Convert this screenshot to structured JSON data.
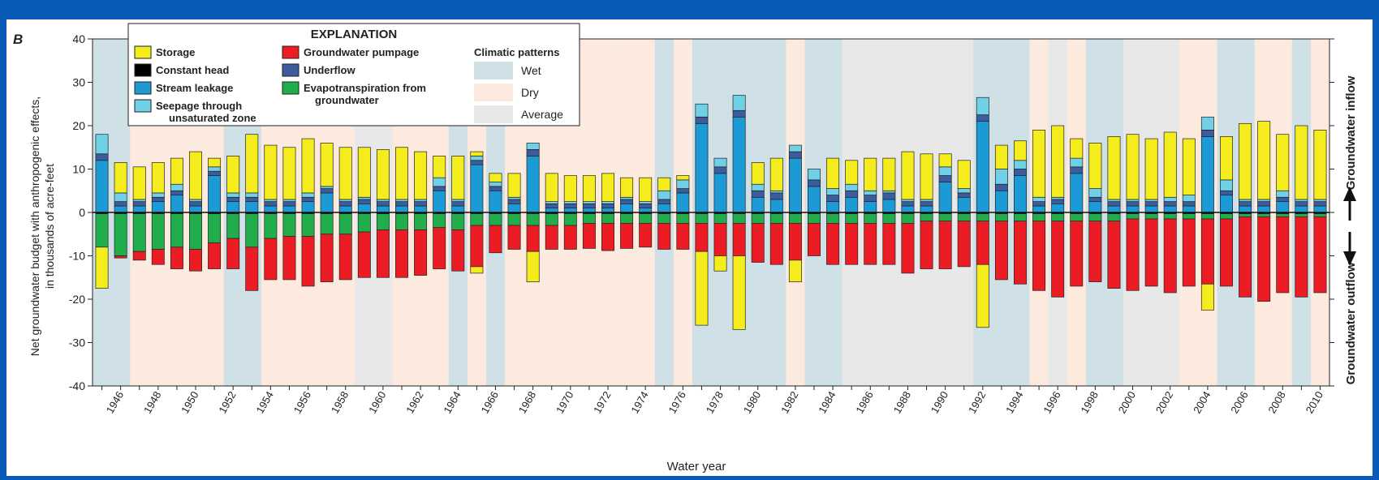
{
  "panel_label": "B",
  "chart_data": {
    "type": "bar",
    "stacked": true,
    "ylabel_line1": "Net groundwater budget with anthropogenic effects,",
    "ylabel_line2": "in thousands of acre-feet",
    "xlabel": "Water year",
    "ylim": [
      -40,
      40
    ],
    "yticks": [
      -40,
      -30,
      -20,
      -10,
      0,
      10,
      20,
      30,
      40
    ],
    "xtick_labels": [
      "1946",
      "1948",
      "1950",
      "1952",
      "1954",
      "1956",
      "1958",
      "1960",
      "1962",
      "1964",
      "1966",
      "1968",
      "1970",
      "1972",
      "1974",
      "1976",
      "1978",
      "1980",
      "1982",
      "1984",
      "1986",
      "1988",
      "1990",
      "1992",
      "1994",
      "1996",
      "1998",
      "2000",
      "2002",
      "2004",
      "2006",
      "2008",
      "2010"
    ],
    "right_label_top": "Groundwater inflow",
    "right_label_bottom": "Groundwater outflow",
    "grid": false,
    "years": [
      1945,
      1946,
      1947,
      1948,
      1949,
      1950,
      1951,
      1952,
      1953,
      1954,
      1955,
      1956,
      1957,
      1958,
      1959,
      1960,
      1961,
      1962,
      1963,
      1964,
      1965,
      1966,
      1967,
      1968,
      1969,
      1970,
      1971,
      1972,
      1973,
      1974,
      1975,
      1976,
      1977,
      1978,
      1979,
      1980,
      1981,
      1982,
      1983,
      1984,
      1985,
      1986,
      1987,
      1988,
      1989,
      1990,
      1991,
      1992,
      1993,
      1994,
      1995,
      1996,
      1997,
      1998,
      1999,
      2000,
      2001,
      2002,
      2003,
      2004,
      2005,
      2006,
      2007,
      2008,
      2009,
      2010
    ],
    "climate_pattern": [
      "Wet",
      "Wet",
      "Dry",
      "Dry",
      "Dry",
      "Dry",
      "Dry",
      "Wet",
      "Wet",
      "Dry",
      "Dry",
      "Dry",
      "Dry",
      "Dry",
      "Average",
      "Average",
      "Dry",
      "Dry",
      "Dry",
      "Wet",
      "Dry",
      "Wet",
      "Dry",
      "Dry",
      "Dry",
      "Dry",
      "Dry",
      "Dry",
      "Dry",
      "Dry",
      "Wet",
      "Dry",
      "Wet",
      "Wet",
      "Wet",
      "Wet",
      "Wet",
      "Dry",
      "Wet",
      "Wet",
      "Average",
      "Average",
      "Average",
      "Average",
      "Average",
      "Average",
      "Average",
      "Wet",
      "Wet",
      "Wet",
      "Dry",
      "Average",
      "Dry",
      "Wet",
      "Wet",
      "Average",
      "Average",
      "Average",
      "Dry",
      "Dry",
      "Wet",
      "Wet",
      "Dry",
      "Dry",
      "Wet",
      "Dry"
    ],
    "inflow_series": [
      {
        "name": "Stream leakage",
        "values": [
          12,
          1.5,
          1.5,
          2.5,
          4,
          1.5,
          8.5,
          2.5,
          2.5,
          1.5,
          1.5,
          2.5,
          4.5,
          1.5,
          2,
          1.5,
          1.5,
          1.5,
          5,
          1.5,
          11,
          5,
          2,
          13,
          1,
          1,
          1,
          1,
          2,
          1,
          2,
          4.5,
          20.5,
          9,
          22,
          3.5,
          3,
          12.5,
          6,
          2.5,
          3.5,
          2.5,
          3,
          1.5,
          1.5,
          7,
          3.5,
          21,
          5,
          8.5,
          1.5,
          2,
          9,
          2.5,
          1.5,
          1.5,
          1.5,
          1.5,
          1.5,
          17.5,
          4,
          1.5,
          1.5,
          2.5,
          1.5,
          1.5
        ]
      },
      {
        "name": "Underflow",
        "values": [
          1.5,
          1,
          1,
          1,
          1,
          1,
          1,
          1,
          1,
          1,
          1,
          1,
          1,
          1,
          1,
          1,
          1,
          1,
          1,
          1,
          1,
          1,
          1,
          1.5,
          1,
          1,
          1,
          1,
          1,
          1,
          1,
          1,
          1.5,
          1.5,
          1.5,
          1.5,
          1.5,
          1.5,
          1.5,
          1.5,
          1.5,
          1.5,
          1.5,
          1,
          1,
          1.5,
          1,
          1.5,
          1.5,
          1.5,
          1,
          1,
          1.5,
          1,
          1,
          1,
          1,
          1,
          1,
          1.5,
          1,
          1,
          1,
          1,
          1,
          1
        ]
      },
      {
        "name": "Seepage through unsaturated zone",
        "values": [
          4.5,
          2,
          0.5,
          1,
          1.5,
          0.5,
          1,
          1,
          1,
          0.5,
          0.5,
          1,
          0.5,
          0.5,
          0.5,
          0.5,
          0.5,
          0.5,
          2,
          0.5,
          1,
          1,
          0.5,
          1.5,
          0.5,
          0.5,
          0.5,
          0.5,
          0.5,
          0.5,
          2,
          2,
          3,
          2,
          3.5,
          1.5,
          0.5,
          1.5,
          2.5,
          1.5,
          1.5,
          1,
          0.5,
          0.5,
          0.5,
          2,
          1,
          4,
          3.5,
          2,
          1,
          0.5,
          2,
          2,
          0.5,
          0.5,
          0.5,
          1,
          1.5,
          3,
          2.5,
          0.5,
          0.5,
          1.5,
          0.5,
          0.5
        ]
      },
      {
        "name": "Storage",
        "values": [
          0,
          7,
          7.5,
          7,
          6,
          11,
          2,
          8.5,
          13.5,
          12.5,
          12,
          12.5,
          10,
          12,
          11.5,
          11.5,
          12,
          11,
          5,
          10,
          1,
          2,
          5.5,
          0,
          6.5,
          6,
          6,
          6.5,
          4.5,
          5.5,
          3,
          1,
          0,
          0,
          0,
          5,
          7.5,
          0,
          0,
          7,
          5.5,
          7.5,
          7.5,
          11,
          10.5,
          3,
          6.5,
          0,
          5.5,
          4.5,
          15.5,
          16.5,
          4.5,
          10.5,
          14.5,
          15,
          14,
          15,
          13,
          0,
          10,
          17.5,
          18,
          13,
          17,
          16
        ]
      }
    ],
    "outflow_series": [
      {
        "name": "Constant head",
        "values": [
          -0.3,
          -0.3,
          -0.3,
          -0.3,
          -0.3,
          -0.3,
          -0.3,
          -0.3,
          -0.3,
          -0.3,
          -0.3,
          -0.3,
          -0.3,
          -0.3,
          -0.3,
          -0.3,
          -0.3,
          -0.3,
          -0.3,
          -0.3,
          -0.3,
          -0.3,
          -0.3,
          -0.3,
          -0.3,
          -0.3,
          -0.3,
          -0.3,
          -0.3,
          -0.3,
          -0.3,
          -0.3,
          -0.3,
          -0.3,
          -0.3,
          -0.3,
          -0.3,
          -0.3,
          -0.3,
          -0.3,
          -0.3,
          -0.3,
          -0.3,
          -0.3,
          -0.3,
          -0.3,
          -0.3,
          -0.3,
          -0.3,
          -0.3,
          -0.3,
          -0.3,
          -0.3,
          -0.3,
          -0.3,
          -0.3,
          -0.3,
          -0.3,
          -0.3,
          -0.3,
          -0.3,
          -0.3,
          -0.3,
          -0.3,
          -0.3,
          -0.3
        ]
      },
      {
        "name": "Evapotranspiration from groundwater",
        "values": [
          -7.7,
          -9.7,
          -8.7,
          -8.2,
          -7.7,
          -8.2,
          -6.7,
          -5.7,
          -7.7,
          -5.7,
          -5.2,
          -5.2,
          -4.7,
          -4.7,
          -4.2,
          -3.7,
          -3.7,
          -3.7,
          -3.2,
          -3.7,
          -2.7,
          -2.7,
          -2.7,
          -2.7,
          -2.7,
          -2.7,
          -2.2,
          -2.2,
          -2.2,
          -2.2,
          -2.2,
          -2.2,
          -2.2,
          -2.2,
          -2.2,
          -2.2,
          -2.2,
          -2.2,
          -2.2,
          -2.2,
          -2.2,
          -2.2,
          -2.2,
          -2.2,
          -1.7,
          -1.7,
          -1.7,
          -1.7,
          -1.7,
          -1.7,
          -1.7,
          -1.7,
          -1.7,
          -1.7,
          -1.7,
          -1.2,
          -1.2,
          -1.2,
          -1.2,
          -1.2,
          -1.2,
          -0.7,
          -0.7,
          -0.7,
          -0.7,
          -0.7
        ]
      },
      {
        "name": "Groundwater pumpage",
        "values": [
          0,
          -0.5,
          -2,
          -3.5,
          -5,
          -5,
          -6,
          -7,
          -10,
          -9.5,
          -10,
          -11.5,
          -11,
          -10.5,
          -10.5,
          -11,
          -11,
          -10.5,
          -9.5,
          -9.5,
          -9.5,
          -6.3,
          -5.5,
          -6,
          -5.5,
          -5.5,
          -5.8,
          -6.3,
          -5.8,
          -5.5,
          -6,
          -6,
          -6.5,
          -7.5,
          -7.5,
          -9,
          -9.5,
          -8.5,
          -7.5,
          -9.5,
          -9.5,
          -9.5,
          -9.5,
          -11.5,
          -11,
          -11,
          -10.5,
          -10,
          -13.5,
          -14.5,
          -16,
          -17.5,
          -15,
          -14,
          -15.5,
          -16.5,
          -15.5,
          -17,
          -15.5,
          -15,
          -15.5,
          -18.5,
          -19.5,
          -17.5,
          -18.5,
          -17.5
        ]
      },
      {
        "name": "Storage",
        "values": [
          -9.5,
          0,
          0,
          0,
          0,
          0,
          0,
          0,
          0,
          0,
          0,
          0,
          0,
          0,
          0,
          0,
          0,
          0,
          0,
          0,
          -1.5,
          0,
          0,
          -7,
          0,
          0,
          0,
          0,
          0,
          0,
          0,
          0,
          -17,
          -3.5,
          -17,
          0,
          0,
          -5,
          0,
          0,
          0,
          0,
          0,
          0,
          0,
          0,
          0,
          -14.5,
          0,
          0,
          0,
          0,
          0,
          0,
          0,
          0,
          0,
          0,
          0,
          -6,
          0,
          0,
          0,
          0,
          0,
          0
        ]
      }
    ],
    "legend": {
      "title": "EXPLANATION",
      "items": [
        {
          "name": "Storage",
          "color": "#f4ec1c"
        },
        {
          "name": "Constant head",
          "color": "#000000"
        },
        {
          "name": "Stream leakage",
          "color": "#1b9ad6"
        },
        {
          "name": "Seepage through",
          "name2": "unsaturated zone",
          "color": "#6fd0e6"
        },
        {
          "name": "Groundwater pumpage",
          "color": "#ec1c24"
        },
        {
          "name": "Underflow",
          "color": "#3d5c9e"
        },
        {
          "name": "Evapotranspiration from",
          "name2": "groundwater",
          "color": "#21ad4b"
        }
      ],
      "climate_title": "Climatic patterns",
      "climate_items": [
        {
          "name": "Wet",
          "color": "#cfe0e6"
        },
        {
          "name": "Dry",
          "color": "#fbeadd"
        },
        {
          "name": "Average",
          "color": "#e8e8e8"
        }
      ],
      "placement": "top-left"
    },
    "colors": {
      "Storage": "#f4ec1c",
      "Constant head": "#000000",
      "Stream leakage": "#1b9ad6",
      "Seepage through unsaturated zone": "#6fd0e6",
      "Groundwater pumpage": "#ec1c24",
      "Underflow": "#3d5c9e",
      "Evapotranspiration from groundwater": "#21ad4b",
      "Wet": "#cfe0e6",
      "Dry": "#fbeadd",
      "Average": "#e8e8e8"
    }
  }
}
